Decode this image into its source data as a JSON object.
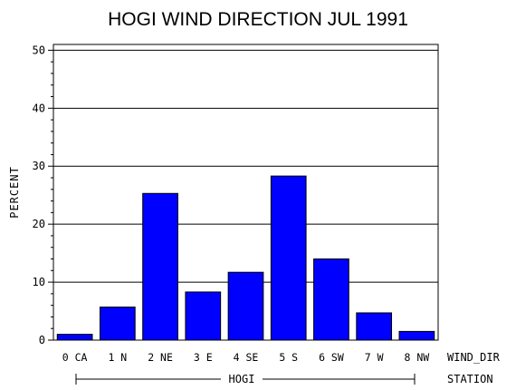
{
  "chart_data": {
    "type": "bar",
    "title": "HOGI WIND DIRECTION JUL 1991",
    "ylabel": "PERCENT",
    "xlabel": "WIND_DIR",
    "group_label": "HOGI",
    "group_axis_label": "STATION",
    "ylim": [
      0,
      51
    ],
    "yticks": [
      0,
      10,
      20,
      30,
      40,
      50
    ],
    "grid": true,
    "categories": [
      "0 CA",
      "1 N",
      "2 NE",
      "3 E",
      "4 SE",
      "5 S",
      "6 SW",
      "7 W",
      "8 NW"
    ],
    "values": [
      1.0,
      5.7,
      25.3,
      8.3,
      11.7,
      28.3,
      14.0,
      4.7,
      1.5
    ],
    "bar_color": "#0000ff"
  }
}
